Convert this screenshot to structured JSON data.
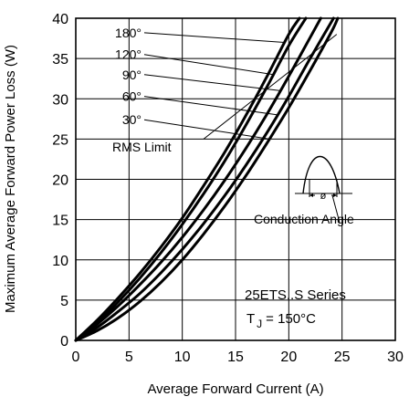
{
  "chart_data": {
    "type": "line",
    "xlabel": "Average Forward Current (A)",
    "ylabel": "Maximum Average Forward Power Loss (W)",
    "xlim": [
      0,
      30
    ],
    "ylim": [
      0,
      40
    ],
    "x_ticks": [
      "0",
      "5",
      "10",
      "15",
      "20",
      "25",
      "30"
    ],
    "y_ticks": [
      "0",
      "5",
      "10",
      "15",
      "20",
      "25",
      "30",
      "35",
      "40"
    ],
    "grid": true,
    "series": [
      {
        "name": "180°",
        "points": [
          [
            0,
            0
          ],
          [
            2,
            2.5
          ],
          [
            4,
            5.3
          ],
          [
            6,
            8.3
          ],
          [
            8,
            11.6
          ],
          [
            10,
            15.2
          ],
          [
            12,
            19.2
          ],
          [
            14,
            23.4
          ],
          [
            16,
            28
          ],
          [
            18,
            32.9
          ],
          [
            20,
            38
          ],
          [
            21,
            40
          ]
        ]
      },
      {
        "name": "120°",
        "points": [
          [
            0,
            0
          ],
          [
            2,
            2.2
          ],
          [
            4,
            4.8
          ],
          [
            6,
            7.7
          ],
          [
            8,
            10.9
          ],
          [
            10,
            14.4
          ],
          [
            12,
            18.2
          ],
          [
            14,
            22.3
          ],
          [
            16,
            26.8
          ],
          [
            18,
            31.6
          ],
          [
            20,
            36.6
          ],
          [
            21.6,
            40
          ]
        ]
      },
      {
        "name": "90°",
        "points": [
          [
            0,
            0
          ],
          [
            2,
            2
          ],
          [
            4,
            4.3
          ],
          [
            6,
            6.9
          ],
          [
            8,
            9.7
          ],
          [
            10,
            12.8
          ],
          [
            12,
            16.2
          ],
          [
            14,
            19.9
          ],
          [
            16,
            23.9
          ],
          [
            18,
            28.2
          ],
          [
            20,
            32.8
          ],
          [
            22,
            37.6
          ],
          [
            23,
            40
          ]
        ]
      },
      {
        "name": "60°",
        "points": [
          [
            0,
            0
          ],
          [
            2,
            1.6
          ],
          [
            4,
            3.6
          ],
          [
            6,
            5.8
          ],
          [
            8,
            8.4
          ],
          [
            10,
            11.3
          ],
          [
            12,
            14.5
          ],
          [
            14,
            18
          ],
          [
            16,
            21.8
          ],
          [
            18,
            25.9
          ],
          [
            20,
            30.3
          ],
          [
            22,
            35
          ],
          [
            24.2,
            40
          ]
        ]
      },
      {
        "name": "30°",
        "points": [
          [
            0,
            0
          ],
          [
            2,
            1.2
          ],
          [
            4,
            2.8
          ],
          [
            6,
            4.8
          ],
          [
            8,
            7.2
          ],
          [
            10,
            10
          ],
          [
            12,
            13.2
          ],
          [
            14,
            16.7
          ],
          [
            16,
            20.5
          ],
          [
            18,
            24.6
          ],
          [
            20,
            28.9
          ],
          [
            22,
            33.5
          ],
          [
            24,
            38.3
          ],
          [
            24.6,
            40
          ]
        ]
      }
    ],
    "rms_limit": {
      "label": "RMS Limit",
      "points": [
        [
          12,
          25
        ],
        [
          24.5,
          38
        ]
      ]
    },
    "annotations": {
      "conduction": "Conduction Angle",
      "phi": "ø",
      "series_title": "25ETS..S Series",
      "tj": "T",
      "tj_sub": "J",
      "tj_value": "= 150°C"
    }
  }
}
